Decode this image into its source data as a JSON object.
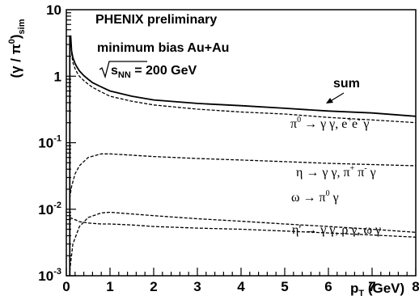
{
  "chart_data": {
    "type": "line",
    "scale": {
      "y": "log"
    },
    "xlim": [
      0,
      8
    ],
    "ylim": [
      0.001,
      10
    ],
    "xlabel": "p",
    "xlabel_sub": "T",
    "xlabel_unit": " (GeV)",
    "ylabel_parts": {
      "open": "(γ / π",
      "sup": "0",
      "close": ")",
      "sub": "sim"
    },
    "x_ticks": [
      "0",
      "1",
      "2",
      "3",
      "4",
      "5",
      "6",
      "7",
      "8"
    ],
    "y_ticks": [
      {
        "value": 10,
        "base": "10",
        "exp": ""
      },
      {
        "value": 1,
        "base": "1",
        "exp": ""
      },
      {
        "value": 0.1,
        "base": "10",
        "exp": "-1"
      },
      {
        "value": 0.01,
        "base": "10",
        "exp": "-2"
      },
      {
        "value": 0.001,
        "base": "10",
        "exp": "-3"
      }
    ],
    "texts": {
      "preliminary": "PHENIX preliminary",
      "system": "minimum bias Au+Au",
      "energy_s": "s",
      "energy_sub": "NN",
      "energy_val": " = 200 GeV",
      "sum_label": "sum"
    },
    "series": [
      {
        "name": "sum",
        "dash": "solid",
        "x": [
          0.08,
          0.1,
          0.12,
          0.15,
          0.2,
          0.25,
          0.3,
          0.4,
          0.5,
          0.6,
          0.8,
          1.0,
          1.5,
          2.0,
          3.0,
          4.0,
          5.0,
          6.0,
          7.0,
          8.0
        ],
        "y": [
          4.0,
          4.0,
          2.4,
          1.9,
          1.55,
          1.35,
          1.2,
          1.02,
          0.9,
          0.8,
          0.69,
          0.6,
          0.5,
          0.44,
          0.39,
          0.36,
          0.33,
          0.3,
          0.28,
          0.25
        ]
      },
      {
        "name": "π0 decays",
        "label_parts": [
          "π",
          "0",
          " → γ γ, e",
          "+",
          "e",
          "-",
          " γ"
        ],
        "dash": "dashed",
        "x": [
          0.08,
          0.1,
          0.12,
          0.15,
          0.2,
          0.25,
          0.3,
          0.4,
          0.5,
          0.6,
          0.8,
          1.0,
          1.5,
          2.0,
          3.0,
          4.0,
          5.0,
          6.0,
          7.0,
          8.0
        ],
        "y": [
          3.4,
          3.4,
          2.2,
          1.6,
          1.3,
          1.12,
          1.0,
          0.86,
          0.76,
          0.68,
          0.58,
          0.5,
          0.42,
          0.37,
          0.32,
          0.29,
          0.27,
          0.24,
          0.22,
          0.2
        ]
      },
      {
        "name": "η decays",
        "label_parts": [
          "η → γ γ, π",
          "+",
          " π",
          "-",
          " γ"
        ],
        "dash": "dashed",
        "x": [
          0.08,
          0.12,
          0.2,
          0.3,
          0.5,
          0.8,
          1.0,
          1.5,
          2.0,
          3.0,
          4.0,
          5.0,
          6.0,
          7.0,
          8.0
        ],
        "y": [
          0.015,
          0.022,
          0.034,
          0.045,
          0.06,
          0.068,
          0.068,
          0.065,
          0.062,
          0.058,
          0.055,
          0.052,
          0.049,
          0.047,
          0.045
        ]
      },
      {
        "name": "ω decays",
        "label_parts": [
          "ω → π",
          "0",
          " γ"
        ],
        "dash": "dashed",
        "x": [
          0.08,
          0.15,
          0.3,
          0.5,
          0.8,
          1.0,
          1.5,
          2.0,
          3.0,
          4.0,
          5.0,
          6.0,
          7.0,
          8.0
        ],
        "y": [
          0.0012,
          0.003,
          0.0055,
          0.0075,
          0.0088,
          0.009,
          0.0085,
          0.008,
          0.0072,
          0.0066,
          0.006,
          0.0055,
          0.005,
          0.0045
        ]
      },
      {
        "name": "η' decays",
        "label_parts": [
          "η' → γ γ, ρ γ, ω γ"
        ],
        "dash": "dashed",
        "x": [
          0.08,
          0.15,
          0.3,
          0.5,
          0.8,
          1.0,
          1.5,
          2.0,
          3.0,
          4.0,
          5.0,
          6.0,
          7.0,
          8.0
        ],
        "y": [
          0.0075,
          0.0072,
          0.0065,
          0.0062,
          0.006,
          0.006,
          0.0058,
          0.0055,
          0.0052,
          0.005,
          0.0047,
          0.0044,
          0.0041,
          0.0038
        ]
      }
    ]
  }
}
